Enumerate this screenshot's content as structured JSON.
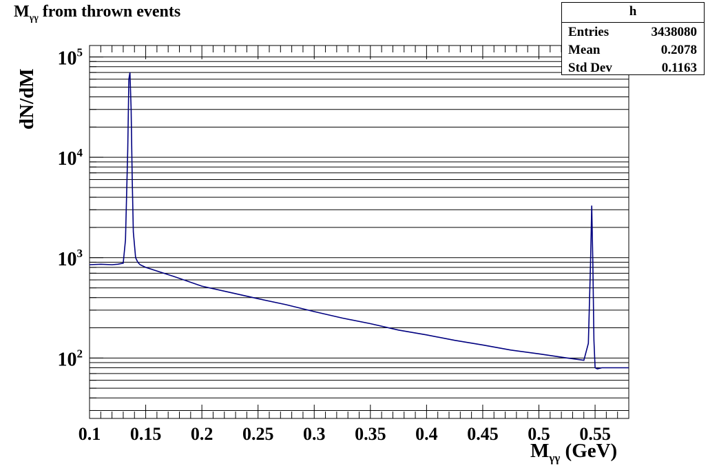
{
  "chart_data": {
    "type": "line",
    "title_main": "M",
    "title_sub": "γγ",
    "title_rest": " from thrown events",
    "xlabel_main": "M",
    "xlabel_sub": "γγ",
    "xlabel_rest": " (GeV)",
    "ylabel": "dN/dM",
    "xlim": [
      0.1,
      0.58
    ],
    "ylim": [
      25,
      130000
    ],
    "yscale": "log",
    "grid": "horizontal",
    "line_color": "#000080",
    "x_ticks": [
      "0.1",
      "0.15",
      "0.2",
      "0.25",
      "0.3",
      "0.35",
      "0.4",
      "0.45",
      "0.5",
      "0.55"
    ],
    "y_ticks": [
      {
        "base": "10",
        "exp": "2",
        "value": 100
      },
      {
        "base": "10",
        "exp": "3",
        "value": 1000
      },
      {
        "base": "10",
        "exp": "4",
        "value": 10000
      },
      {
        "base": "10",
        "exp": "5",
        "value": 100000
      }
    ],
    "x": [
      0.1,
      0.11,
      0.12,
      0.125,
      0.13,
      0.132,
      0.134,
      0.135,
      0.136,
      0.137,
      0.138,
      0.139,
      0.141,
      0.143,
      0.145,
      0.15,
      0.175,
      0.2,
      0.225,
      0.25,
      0.275,
      0.3,
      0.325,
      0.35,
      0.375,
      0.4,
      0.425,
      0.45,
      0.475,
      0.5,
      0.525,
      0.54,
      0.544,
      0.546,
      0.547,
      0.548,
      0.549,
      0.55,
      0.552,
      0.556,
      0.565,
      0.58
    ],
    "y": [
      850,
      860,
      850,
      860,
      880,
      1500,
      12000,
      60000,
      70000,
      30000,
      6000,
      1800,
      1000,
      900,
      850,
      800,
      650,
      520,
      450,
      390,
      340,
      290,
      250,
      220,
      190,
      170,
      150,
      135,
      120,
      110,
      100,
      95,
      140,
      900,
      3300,
      900,
      150,
      80,
      78,
      80,
      80,
      80
    ]
  },
  "stats_box": {
    "header": "h",
    "rows": [
      {
        "label": "Entries",
        "value": "3438080"
      },
      {
        "label": "Mean",
        "value": "0.2078"
      },
      {
        "label": "Std Dev",
        "value": "0.1163"
      }
    ]
  }
}
